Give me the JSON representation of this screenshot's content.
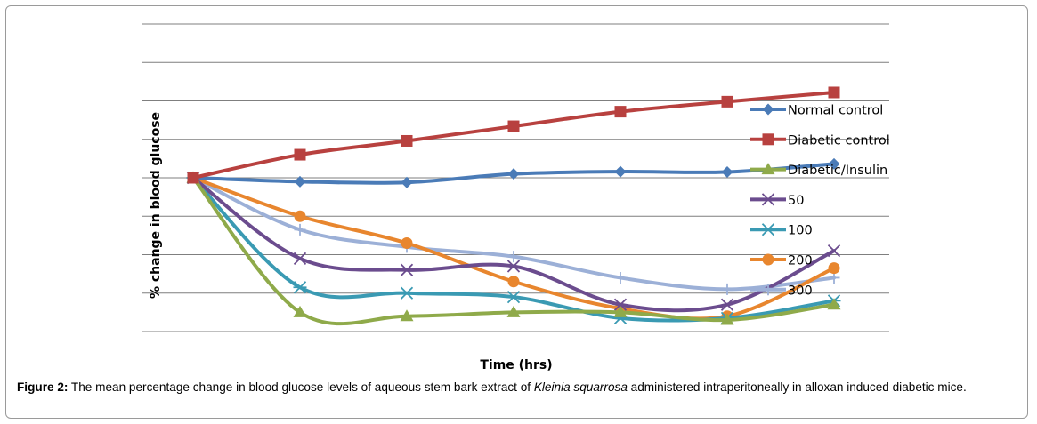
{
  "caption": {
    "label": "Figure 2:",
    "text_before": " The mean percentage change in blood glucose levels of aqueous stem bark extract of ",
    "species": "Kleinia squarrosa",
    "text_after": " administered intraperitoneally in alloxan induced diabetic mice."
  },
  "chart_data": {
    "type": "line",
    "title": "",
    "xlabel": "Time (hrs)",
    "ylabel": "% change in blood glucose",
    "x": [
      0,
      1,
      2,
      3,
      4,
      5,
      6
    ],
    "ylim": [
      -40,
      40
    ],
    "grid": true,
    "smooth": true,
    "legend_position": "right",
    "series": [
      {
        "name": "Normal control",
        "color": "#4a7bb7",
        "marker": "diamond",
        "values": [
          0,
          -1,
          -1.2,
          1,
          1.6,
          1.5,
          3.6
        ]
      },
      {
        "name": "Diabetic control",
        "color": "#b8413f",
        "marker": "square",
        "values": [
          0,
          6,
          9.6,
          13.4,
          17.2,
          19.8,
          22.2
        ]
      },
      {
        "name": "Diabetic/Insulin",
        "color": "#8faa4a",
        "marker": "triangle",
        "values": [
          0,
          -35,
          -36,
          -35,
          -35,
          -37,
          -33
        ]
      },
      {
        "name": "50",
        "color": "#6b4c8e",
        "marker": "x",
        "values": [
          0,
          -21,
          -24,
          -23,
          -33,
          -33,
          -19
        ]
      },
      {
        "name": "100",
        "color": "#3a9ab3",
        "marker": "star",
        "values": [
          0,
          -28.5,
          -30,
          -31,
          -36.5,
          -36.5,
          -32
        ]
      },
      {
        "name": "200",
        "color": "#e8862e",
        "marker": "circle",
        "values": [
          0,
          -10,
          -17,
          -27,
          -34,
          -36,
          -23.5
        ]
      },
      {
        "name": "300",
        "color": "#9cb0d7",
        "marker": "plus",
        "values": [
          0,
          -13.5,
          -18,
          -20.5,
          -26,
          -29,
          -26
        ]
      }
    ]
  }
}
